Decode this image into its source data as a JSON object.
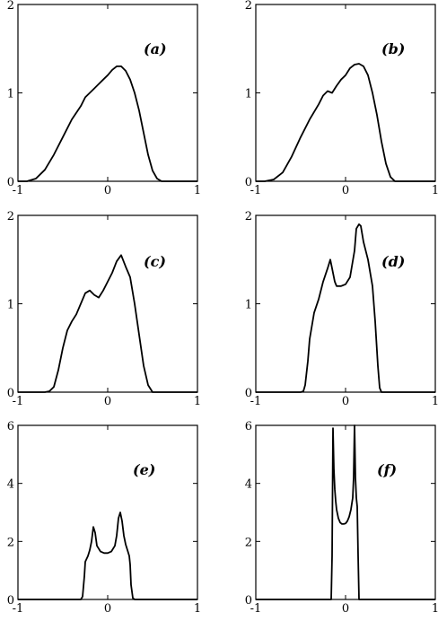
{
  "chart_data": [
    {
      "type": "line",
      "panel_label": "(a)",
      "xlim": [
        -1,
        1
      ],
      "ylim": [
        0,
        2
      ],
      "xticks": [
        -1,
        0,
        1
      ],
      "yticks": [
        0,
        1,
        2
      ],
      "xticklabels": [
        "-1",
        "0",
        "1"
      ],
      "yticklabels": [
        "0",
        "1",
        "2"
      ],
      "grid": false,
      "series": [
        {
          "x": [
            -1.0,
            -0.9,
            -0.8,
            -0.7,
            -0.6,
            -0.5,
            -0.4,
            -0.3,
            -0.25,
            -0.2,
            -0.15,
            -0.1,
            -0.05,
            0.0,
            0.05,
            0.1,
            0.15,
            0.2,
            0.25,
            0.3,
            0.35,
            0.4,
            0.45,
            0.5,
            0.55,
            0.6,
            0.7,
            0.8,
            0.9,
            1.0
          ],
          "y": [
            0,
            0,
            0.03,
            0.13,
            0.3,
            0.5,
            0.7,
            0.85,
            0.95,
            1.0,
            1.05,
            1.1,
            1.15,
            1.2,
            1.26,
            1.3,
            1.3,
            1.25,
            1.15,
            1.0,
            0.8,
            0.55,
            0.3,
            0.12,
            0.03,
            0,
            0,
            0,
            0,
            0
          ]
        }
      ]
    },
    {
      "type": "line",
      "panel_label": "(b)",
      "xlim": [
        -1,
        1
      ],
      "ylim": [
        0,
        2
      ],
      "xticks": [
        -1,
        0,
        1
      ],
      "yticks": [
        0,
        1,
        2
      ],
      "xticklabels": [
        "-1",
        "0",
        "1"
      ],
      "yticklabels": [
        "0",
        "1",
        "2"
      ],
      "grid": false,
      "series": [
        {
          "x": [
            -1.0,
            -0.9,
            -0.8,
            -0.7,
            -0.6,
            -0.5,
            -0.4,
            -0.3,
            -0.25,
            -0.2,
            -0.15,
            -0.1,
            -0.05,
            0.0,
            0.05,
            0.1,
            0.15,
            0.2,
            0.25,
            0.3,
            0.35,
            0.4,
            0.45,
            0.5,
            0.55,
            0.6,
            0.7,
            0.8,
            0.9,
            1.0
          ],
          "y": [
            0,
            0,
            0.02,
            0.1,
            0.28,
            0.5,
            0.7,
            0.87,
            0.97,
            1.02,
            1.0,
            1.08,
            1.15,
            1.2,
            1.28,
            1.32,
            1.33,
            1.3,
            1.2,
            1.0,
            0.75,
            0.45,
            0.2,
            0.05,
            0,
            0,
            0,
            0,
            0,
            0
          ]
        }
      ]
    },
    {
      "type": "line",
      "panel_label": "(c)",
      "xlim": [
        -1,
        1
      ],
      "ylim": [
        0,
        2
      ],
      "xticks": [
        -1,
        0,
        1
      ],
      "yticks": [
        0,
        1,
        2
      ],
      "xticklabels": [
        "-1",
        "0",
        "1"
      ],
      "yticklabels": [
        "0",
        "1",
        "2"
      ],
      "grid": false,
      "series": [
        {
          "x": [
            -1.0,
            -0.8,
            -0.7,
            -0.65,
            -0.6,
            -0.55,
            -0.5,
            -0.45,
            -0.4,
            -0.35,
            -0.3,
            -0.25,
            -0.2,
            -0.15,
            -0.1,
            -0.05,
            0.0,
            0.05,
            0.1,
            0.15,
            0.2,
            0.25,
            0.3,
            0.35,
            0.4,
            0.45,
            0.5,
            0.6,
            0.8,
            1.0
          ],
          "y": [
            0,
            0,
            0,
            0.01,
            0.06,
            0.25,
            0.5,
            0.7,
            0.8,
            0.88,
            1.0,
            1.12,
            1.15,
            1.1,
            1.07,
            1.15,
            1.25,
            1.35,
            1.48,
            1.55,
            1.42,
            1.3,
            1.0,
            0.65,
            0.3,
            0.08,
            0,
            0,
            0,
            0
          ]
        }
      ]
    },
    {
      "type": "line",
      "panel_label": "(d)",
      "xlim": [
        -1,
        1
      ],
      "ylim": [
        0,
        2
      ],
      "xticks": [
        -1,
        0,
        1
      ],
      "yticks": [
        0,
        1,
        2
      ],
      "xticklabels": [
        "-1",
        "0",
        "1"
      ],
      "yticklabels": [
        "0",
        "1",
        "2"
      ],
      "grid": false,
      "series": [
        {
          "x": [
            -1.0,
            -0.6,
            -0.5,
            -0.47,
            -0.45,
            -0.42,
            -0.4,
            -0.35,
            -0.3,
            -0.25,
            -0.2,
            -0.17,
            -0.15,
            -0.12,
            -0.1,
            -0.05,
            0.0,
            0.05,
            0.1,
            0.12,
            0.15,
            0.17,
            0.2,
            0.25,
            0.3,
            0.33,
            0.36,
            0.38,
            0.4,
            0.6,
            1.0
          ],
          "y": [
            0,
            0,
            0,
            0.01,
            0.08,
            0.35,
            0.6,
            0.9,
            1.05,
            1.25,
            1.4,
            1.5,
            1.4,
            1.25,
            1.2,
            1.2,
            1.22,
            1.3,
            1.6,
            1.85,
            1.9,
            1.88,
            1.7,
            1.5,
            1.2,
            0.8,
            0.3,
            0.05,
            0,
            0,
            0
          ]
        }
      ]
    },
    {
      "type": "line",
      "panel_label": "(e)",
      "xlim": [
        -1,
        1
      ],
      "ylim": [
        0,
        6
      ],
      "xticks": [
        -1,
        0,
        1
      ],
      "yticks": [
        0,
        2,
        4,
        6
      ],
      "xticklabels": [
        "-1",
        "0",
        "1"
      ],
      "yticklabels": [
        "0",
        "2",
        "4",
        "6"
      ],
      "grid": false,
      "series": [
        {
          "x": [
            -1.0,
            -0.5,
            -0.3,
            -0.28,
            -0.26,
            -0.25,
            -0.22,
            -0.2,
            -0.18,
            -0.16,
            -0.14,
            -0.12,
            -0.08,
            -0.04,
            0.0,
            0.04,
            0.08,
            0.1,
            0.12,
            0.14,
            0.16,
            0.18,
            0.2,
            0.22,
            0.24,
            0.25,
            0.26,
            0.28,
            0.3,
            0.5,
            1.0
          ],
          "y": [
            0,
            0,
            0,
            0.1,
            0.8,
            1.3,
            1.5,
            1.7,
            2.0,
            2.5,
            2.3,
            1.85,
            1.65,
            1.6,
            1.6,
            1.65,
            1.85,
            2.2,
            2.8,
            3.0,
            2.7,
            2.2,
            1.9,
            1.7,
            1.5,
            1.2,
            0.5,
            0.05,
            0,
            0,
            0
          ]
        }
      ]
    },
    {
      "type": "line",
      "panel_label": "(f)",
      "xlim": [
        -1,
        1
      ],
      "ylim": [
        0,
        6
      ],
      "xticks": [
        -1,
        0,
        1
      ],
      "yticks": [
        0,
        2,
        4,
        6
      ],
      "xticklabels": [
        "-1",
        "0",
        "1"
      ],
      "yticklabels": [
        "0",
        "2",
        "4",
        "6"
      ],
      "grid": false,
      "series": [
        {
          "x": [
            -1.0,
            -0.3,
            -0.16,
            -0.15,
            -0.14,
            -0.13,
            -0.12,
            -0.11,
            -0.1,
            -0.08,
            -0.06,
            -0.04,
            -0.02,
            0.0,
            0.02,
            0.04,
            0.06,
            0.08,
            0.09,
            0.1,
            0.11,
            0.12,
            0.13,
            0.14,
            0.15,
            0.3,
            1.0
          ],
          "y": [
            0,
            0,
            0,
            1.5,
            5.9,
            4.5,
            3.8,
            3.4,
            3.1,
            2.8,
            2.65,
            2.6,
            2.6,
            2.62,
            2.7,
            2.85,
            3.1,
            3.5,
            4.2,
            6.0,
            4.2,
            3.5,
            3.2,
            1.5,
            0,
            0,
            0
          ]
        }
      ]
    }
  ]
}
